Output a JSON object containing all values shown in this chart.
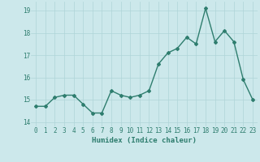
{
  "x": [
    0,
    1,
    2,
    3,
    4,
    5,
    6,
    7,
    8,
    9,
    10,
    11,
    12,
    13,
    14,
    15,
    16,
    17,
    18,
    19,
    20,
    21,
    22,
    23
  ],
  "y": [
    14.7,
    14.7,
    15.1,
    15.2,
    15.2,
    14.8,
    14.4,
    14.4,
    15.4,
    15.2,
    15.1,
    15.2,
    15.4,
    16.6,
    17.1,
    17.3,
    17.8,
    17.5,
    19.1,
    17.6,
    18.1,
    17.6,
    15.9,
    15.0
  ],
  "line_color": "#2e7d6e",
  "marker": "D",
  "marker_size": 2.0,
  "bg_color": "#cce8eb",
  "grid_color": "#afd4d8",
  "xlabel": "Humidex (Indice chaleur)",
  "xlabel_fontsize": 6.5,
  "xlabel_color": "#2e7d6e",
  "xtick_labels": [
    "0",
    "1",
    "2",
    "3",
    "4",
    "5",
    "6",
    "7",
    "8",
    "9",
    "10",
    "11",
    "12",
    "13",
    "14",
    "15",
    "16",
    "17",
    "18",
    "19",
    "20",
    "21",
    "22",
    "23"
  ],
  "ytick_labels": [
    "14",
    "15",
    "16",
    "17",
    "18",
    "19"
  ],
  "yticks": [
    14,
    15,
    16,
    17,
    18,
    19
  ],
  "ylim": [
    13.8,
    19.4
  ],
  "xlim": [
    -0.5,
    23.5
  ],
  "tick_color": "#2e7d6e",
  "tick_fontsize": 5.5,
  "line_width": 1.0
}
